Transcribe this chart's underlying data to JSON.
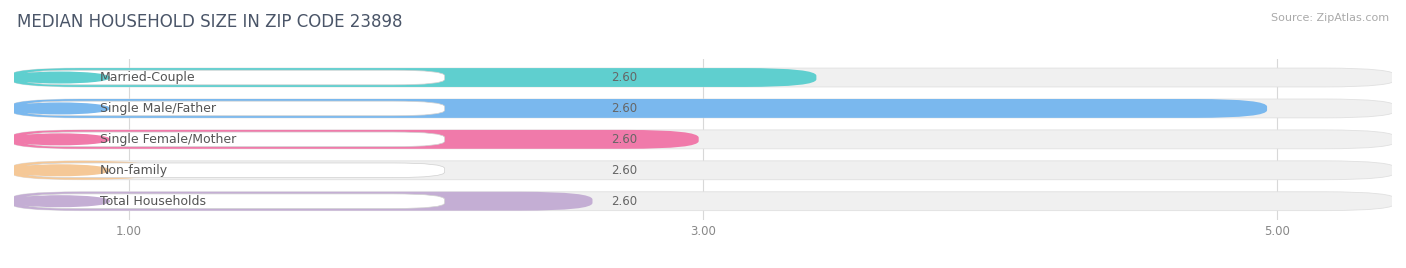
{
  "title": "MEDIAN HOUSEHOLD SIZE IN ZIP CODE 23898",
  "source": "Source: ZipAtlas.com",
  "categories": [
    "Married-Couple",
    "Single Male/Father",
    "Single Female/Mother",
    "Non-family",
    "Total Households"
  ],
  "values": [
    3.38,
    4.95,
    2.97,
    1.08,
    2.6
  ],
  "bar_colors": [
    "#5fcfcf",
    "#7ab8ee",
    "#f07aaa",
    "#f5c897",
    "#c4aed4"
  ],
  "label_dot_colors": [
    "#5fcfcf",
    "#7ab8ee",
    "#f07aaa",
    "#f5c897",
    "#c4aed4"
  ],
  "xlim_start": 0.6,
  "xlim_end": 5.4,
  "x_axis_start": 0.6,
  "xticks": [
    1.0,
    3.0,
    5.0
  ],
  "background_color": "#ffffff",
  "bar_bg_color": "#f0f0f0",
  "bar_bg_edge_color": "#e0e0e0",
  "title_color": "#4a5568",
  "title_fontsize": 12,
  "label_fontsize": 9,
  "value_fontsize": 8.5,
  "source_fontsize": 8
}
